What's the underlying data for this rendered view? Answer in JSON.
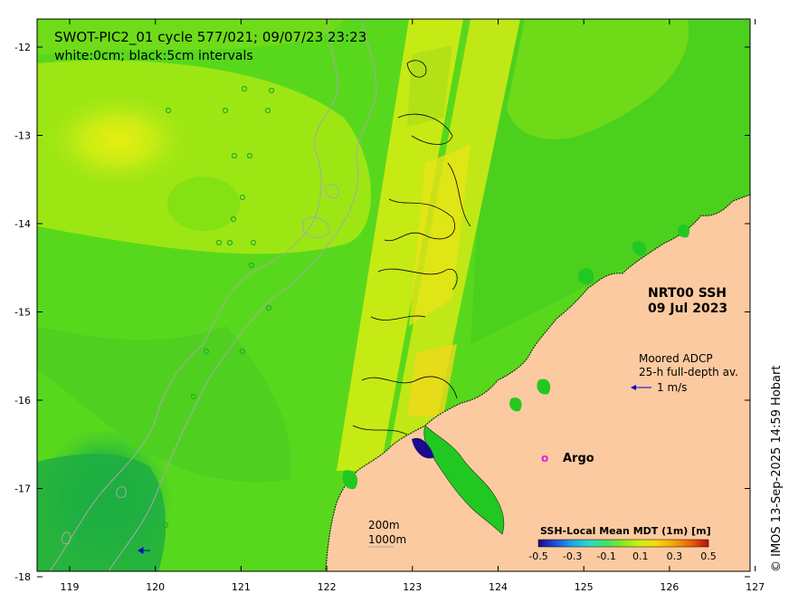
{
  "header": {
    "title": "SWOT-PIC2_01 cycle 577/021; 09/07/23 23:23",
    "subtitle": "white:0cm; black:5cm intervals"
  },
  "product": {
    "line1": "NRT00 SSH",
    "line2": "09 Jul 2023"
  },
  "adcp": {
    "line1": "Moored ADCP",
    "line2": "25-h full-depth av.",
    "scale_label": "1 m/s"
  },
  "argo": {
    "marker": "o",
    "label": "Argo"
  },
  "isobaths": {
    "label_200": "200m",
    "label_1000": "1000m"
  },
  "colorbar": {
    "title": "SSH-Local Mean MDT (1m) [m]",
    "ticks": [
      "-0.5",
      "-0.3",
      "-0.1",
      "0.1",
      "0.3",
      "0.5"
    ],
    "colors": [
      "#1a0a8c",
      "#1f4fd6",
      "#1fa7e6",
      "#2fd6c6",
      "#45e06a",
      "#8be61c",
      "#d6ef12",
      "#f5d60c",
      "#f5a20a",
      "#e85c0a",
      "#b8100a"
    ]
  },
  "axes": {
    "x_ticks": [
      "119",
      "120",
      "121",
      "122",
      "123",
      "124",
      "125",
      "126",
      "127"
    ],
    "y_ticks": [
      "-12",
      "-13",
      "-14",
      "-15",
      "-16",
      "-17",
      "-18"
    ]
  },
  "credit": "© IMOS 13-Sep-2025 14:59 Hobart",
  "colors": {
    "land": "#fccaa0",
    "ocean_base": "#58d81c",
    "ocean_high": "#a8ec0a",
    "ocean_low": "#1fb847",
    "swath": "#c8ec18",
    "swath_high": "#f0e020",
    "argo": "#e020e0",
    "adcp_arrow": "#0000c8"
  }
}
